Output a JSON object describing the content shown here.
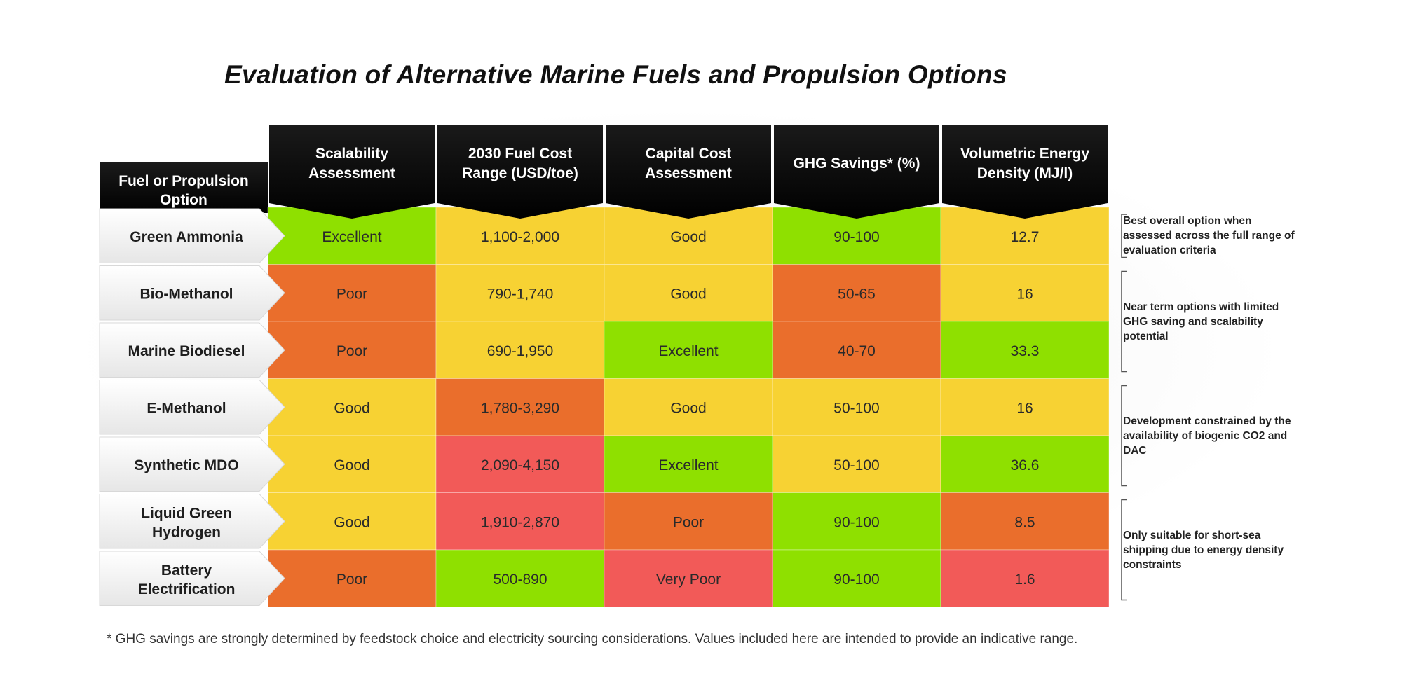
{
  "chart_data": {
    "type": "table",
    "title": "Evaluation of Alternative Marine Fuels and Propulsion Options",
    "row_header": "Fuel or Propulsion Option",
    "columns": [
      "Scalability Assessment",
      "2030 Fuel Cost Range (USD/toe)",
      "Capital Cost Assessment",
      "GHG Savings* (%)",
      "Volumetric Energy Density (MJ/l)"
    ],
    "rows": [
      {
        "label": "Green Ammonia",
        "cells": [
          "Excellent",
          "1,100-2,000",
          "Good",
          "90-100",
          "12.7"
        ]
      },
      {
        "label": "Bio-Methanol",
        "cells": [
          "Poor",
          "790-1,740",
          "Good",
          "50-65",
          "16"
        ]
      },
      {
        "label": "Marine Biodiesel",
        "cells": [
          "Poor",
          "690-1,950",
          "Excellent",
          "40-70",
          "33.3"
        ]
      },
      {
        "label": "E-Methanol",
        "cells": [
          "Good",
          "1,780-3,290",
          "Good",
          "50-100",
          "16"
        ]
      },
      {
        "label": "Synthetic MDO",
        "cells": [
          "Good",
          "2,090-4,150",
          "Excellent",
          "50-100",
          "36.6"
        ]
      },
      {
        "label": "Liquid Green Hydrogen",
        "cells": [
          "Good",
          "1,910-2,870",
          "Poor",
          "90-100",
          "8.5"
        ]
      },
      {
        "label": "Battery Electrification",
        "cells": [
          "Poor",
          "500-890",
          "Very Poor",
          "90-100",
          "1.6"
        ]
      }
    ],
    "cell_ratings": [
      [
        "green",
        "yellow",
        "yellow",
        "green",
        "yellow"
      ],
      [
        "orange",
        "yellow",
        "yellow",
        "orange",
        "yellow"
      ],
      [
        "orange",
        "yellow",
        "green",
        "orange",
        "green"
      ],
      [
        "yellow",
        "orange",
        "yellow",
        "yellow",
        "yellow"
      ],
      [
        "yellow",
        "red",
        "green",
        "yellow",
        "green"
      ],
      [
        "yellow",
        "red",
        "orange",
        "green",
        "orange"
      ],
      [
        "orange",
        "green",
        "red",
        "green",
        "red"
      ]
    ],
    "rating_colors": {
      "green": "#8fe000",
      "yellow": "#f7d233",
      "orange": "#ea6e2c",
      "red": "#f25a58"
    },
    "notes": [
      {
        "rows": [
          0,
          0
        ],
        "text": "Best overall option when assessed across the full range of evaluation criteria"
      },
      {
        "rows": [
          1,
          2
        ],
        "text": "Near term options with limited GHG saving and scalability potential"
      },
      {
        "rows": [
          3,
          4
        ],
        "text": "Development constrained by the availability of biogenic CO2 and DAC"
      },
      {
        "rows": [
          5,
          6
        ],
        "text": "Only suitable for short-sea shipping due to energy density constraints"
      }
    ],
    "footnote": "* GHG savings are strongly determined by feedstock choice and electricity sourcing considerations. Values included here are intended to provide an indicative range."
  }
}
